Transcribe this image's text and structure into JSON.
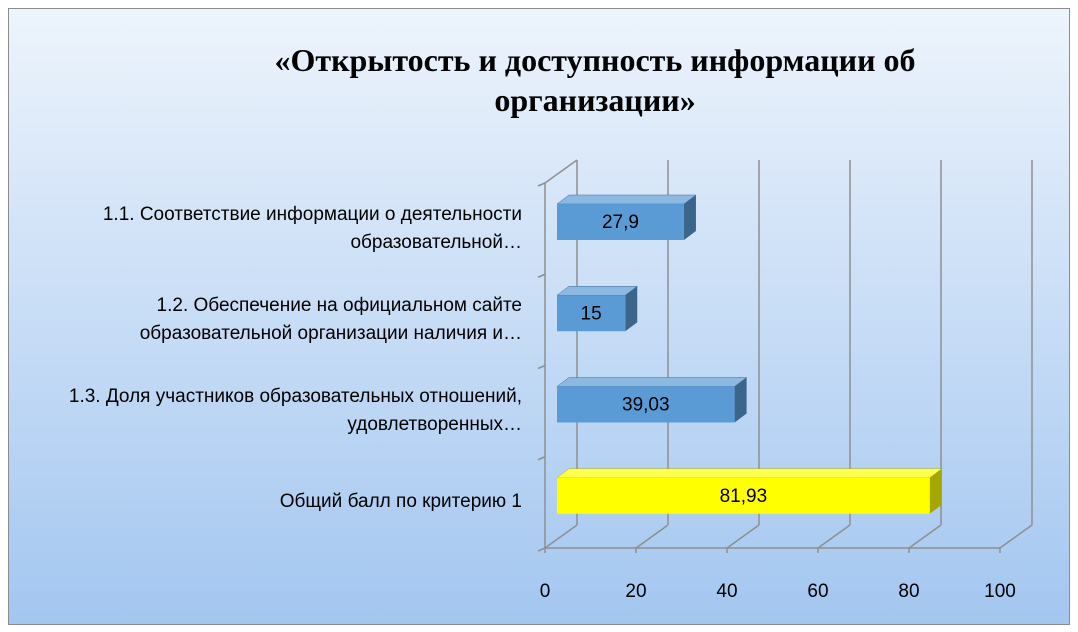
{
  "chart_data": {
    "type": "bar3d_horizontal",
    "title": "«Открытость и доступность информации об организации»",
    "categories": [
      "1.1. Соответствие информации о деятельности образовательной…",
      "1.2. Обеспечение на официальном сайте образовательной организации наличия и…",
      "1.3. Доля участников образовательных отношений, удовлетворенных…",
      "Общий балл по критерию 1"
    ],
    "values": [
      27.9,
      15,
      39.03,
      81.93
    ],
    "value_labels": [
      "27,9",
      "15",
      "39,03",
      "81,93"
    ],
    "colors": [
      "#5b9bd5",
      "#5b9bd5",
      "#5b9bd5",
      "#ffff00"
    ],
    "xlim": [
      0,
      100
    ],
    "xticks": [
      0,
      20,
      40,
      60,
      80,
      100
    ],
    "grid": true
  }
}
